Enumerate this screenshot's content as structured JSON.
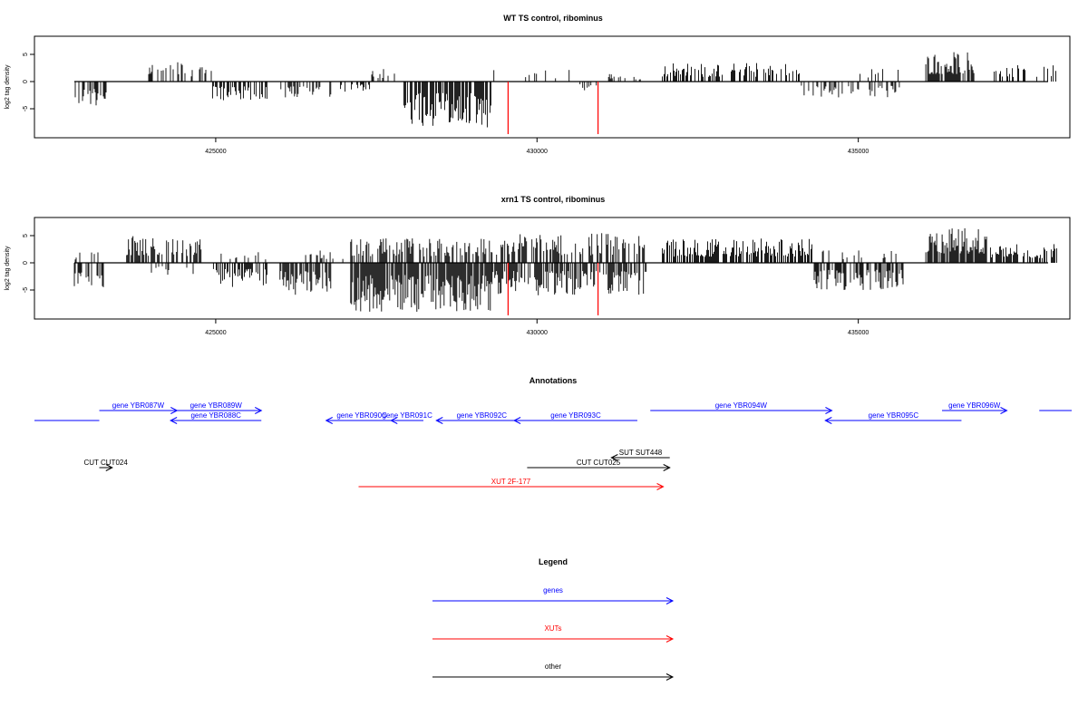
{
  "colors": {
    "gene": "#0000ff",
    "xut": "#ff0000",
    "other": "#000000",
    "marker": "#ff0000",
    "bars": "#000000"
  },
  "chart_data": [
    {
      "type": "bar",
      "title": "WT TS control, ribominus",
      "ylabel": "log2 tag density",
      "xlim": [
        422200,
        438100
      ],
      "ylim": [
        -9,
        7
      ],
      "x_ticks": [
        425000,
        430000,
        435000
      ],
      "x_tick_labels": [
        "425000",
        "430000",
        "435000"
      ],
      "y_ticks": [
        -5,
        0,
        5
      ],
      "y_tick_labels": [
        "-5",
        "0",
        "5"
      ],
      "red_markers": [
        429550,
        430950
      ],
      "segments": [
        {
          "x0": 422800,
          "x1": 423300,
          "sign": -1,
          "max": 4.5,
          "density": 0.55
        },
        {
          "x0": 423900,
          "x1": 424950,
          "sign": 1,
          "max": 3.8,
          "density": 0.35
        },
        {
          "x0": 424950,
          "x1": 425800,
          "sign": -1,
          "max": 3.5,
          "density": 0.55
        },
        {
          "x0": 426000,
          "x1": 426800,
          "sign": -1,
          "max": 3.5,
          "density": 0.55
        },
        {
          "x0": 426900,
          "x1": 427400,
          "sign": -1,
          "max": 2.0,
          "density": 0.3
        },
        {
          "x0": 427400,
          "x1": 427800,
          "sign": 1,
          "max": 2.5,
          "density": 0.3
        },
        {
          "x0": 427900,
          "x1": 429300,
          "sign": -1,
          "max": 8.5,
          "density": 0.75
        },
        {
          "x0": 429300,
          "x1": 430500,
          "sign": 1,
          "max": 2.2,
          "density": 0.12
        },
        {
          "x0": 430500,
          "x1": 431000,
          "sign": -1,
          "max": 2.0,
          "density": 0.18
        },
        {
          "x0": 431000,
          "x1": 431700,
          "sign": 1,
          "max": 1.5,
          "density": 0.12
        },
        {
          "x0": 431950,
          "x1": 434100,
          "sign": 1,
          "max": 3.5,
          "density": 0.45
        },
        {
          "x0": 434100,
          "x1": 435700,
          "sign": -1,
          "max": 3.0,
          "density": 0.3
        },
        {
          "x0": 435000,
          "x1": 435700,
          "sign": 1,
          "max": 2.5,
          "density": 0.15
        },
        {
          "x0": 436050,
          "x1": 436800,
          "sign": 1,
          "max": 5.5,
          "density": 0.85
        },
        {
          "x0": 437100,
          "x1": 438100,
          "sign": 1,
          "max": 3.0,
          "density": 0.35
        }
      ]
    },
    {
      "type": "bar",
      "title": "xrn1 TS control, ribominus",
      "ylabel": "log2 tag density",
      "xlim": [
        422200,
        438100
      ],
      "ylim": [
        -9,
        7
      ],
      "x_ticks": [
        425000,
        430000,
        435000
      ],
      "x_tick_labels": [
        "425000",
        "430000",
        "435000"
      ],
      "y_ticks": [
        -5,
        0,
        5
      ],
      "y_tick_labels": [
        "-5",
        "0",
        "5"
      ],
      "red_markers": [
        429550,
        430950
      ],
      "segments": [
        {
          "x0": 422800,
          "x1": 423300,
          "sign": -1,
          "max": 5.0,
          "density": 0.6
        },
        {
          "x0": 422800,
          "x1": 423300,
          "sign": 1,
          "max": 2.5,
          "density": 0.2
        },
        {
          "x0": 423600,
          "x1": 424800,
          "sign": 1,
          "max": 5.0,
          "density": 0.6
        },
        {
          "x0": 424000,
          "x1": 424800,
          "sign": -1,
          "max": 2.5,
          "density": 0.15
        },
        {
          "x0": 424950,
          "x1": 425800,
          "sign": -1,
          "max": 4.5,
          "density": 0.6
        },
        {
          "x0": 425000,
          "x1": 425800,
          "sign": 1,
          "max": 2.5,
          "density": 0.25
        },
        {
          "x0": 426000,
          "x1": 426800,
          "sign": -1,
          "max": 6.0,
          "density": 0.7
        },
        {
          "x0": 426300,
          "x1": 427000,
          "sign": 1,
          "max": 2.5,
          "density": 0.2
        },
        {
          "x0": 427100,
          "x1": 429300,
          "sign": -1,
          "max": 9.0,
          "density": 0.85
        },
        {
          "x0": 427100,
          "x1": 429300,
          "sign": 1,
          "max": 4.5,
          "density": 0.55
        },
        {
          "x0": 429300,
          "x1": 431700,
          "sign": 1,
          "max": 5.5,
          "density": 0.55
        },
        {
          "x0": 429300,
          "x1": 431700,
          "sign": -1,
          "max": 6.0,
          "density": 0.6
        },
        {
          "x0": 431950,
          "x1": 434300,
          "sign": 1,
          "max": 4.5,
          "density": 0.7
        },
        {
          "x0": 434300,
          "x1": 435700,
          "sign": -1,
          "max": 5.0,
          "density": 0.6
        },
        {
          "x0": 434400,
          "x1": 435700,
          "sign": 1,
          "max": 2.5,
          "density": 0.2
        },
        {
          "x0": 436050,
          "x1": 437000,
          "sign": 1,
          "max": 6.5,
          "density": 0.9
        },
        {
          "x0": 437000,
          "x1": 438100,
          "sign": 1,
          "max": 3.5,
          "density": 0.55
        }
      ]
    }
  ],
  "annotations": {
    "title": "Annotations",
    "features": [
      {
        "label": "",
        "x0": 422100,
        "x1": 423100,
        "kind": "gene",
        "dir": "none",
        "row": 2,
        "label_pos": "above"
      },
      {
        "label": "gene YBR087W",
        "x0": 423100,
        "x1": 424300,
        "kind": "gene",
        "dir": "fwd",
        "row": 1,
        "label_pos": "above"
      },
      {
        "label": "gene YBR088C",
        "x0": 424200,
        "x1": 425600,
        "kind": "gene",
        "dir": "rev",
        "row": 2,
        "label_pos": "above"
      },
      {
        "label": "gene YBR089W",
        "x0": 424200,
        "x1": 425600,
        "kind": "gene",
        "dir": "fwd",
        "row": 1,
        "label_pos": "above"
      },
      {
        "label": "gene YBR090C",
        "x0": 426600,
        "x1": 427700,
        "kind": "gene",
        "dir": "rev",
        "row": 2,
        "label_pos": "above"
      },
      {
        "label": "gene YBR091C",
        "x0": 427600,
        "x1": 428100,
        "kind": "gene",
        "dir": "rev",
        "row": 2,
        "label_pos": "above"
      },
      {
        "label": "gene YBR092C",
        "x0": 428300,
        "x1": 429700,
        "kind": "gene",
        "dir": "rev",
        "row": 2,
        "label_pos": "above"
      },
      {
        "label": "gene YBR093C",
        "x0": 429500,
        "x1": 431400,
        "kind": "gene",
        "dir": "rev",
        "row": 2,
        "label_pos": "above"
      },
      {
        "label": "gene YBR094W",
        "x0": 431600,
        "x1": 434400,
        "kind": "gene",
        "dir": "fwd",
        "row": 1,
        "label_pos": "above"
      },
      {
        "label": "gene YBR095C",
        "x0": 434300,
        "x1": 436400,
        "kind": "gene",
        "dir": "rev",
        "row": 2,
        "label_pos": "above"
      },
      {
        "label": "gene YBR096W",
        "x0": 436100,
        "x1": 437100,
        "kind": "gene",
        "dir": "fwd",
        "row": 1,
        "label_pos": "above"
      },
      {
        "label": "",
        "x0": 437600,
        "x1": 439000,
        "kind": "gene",
        "dir": "none",
        "row": 1,
        "label_pos": "above"
      },
      {
        "label": "SUT SUT448",
        "x0": 431000,
        "x1": 431900,
        "kind": "other",
        "dir": "rev",
        "row": 3,
        "label_pos": "above"
      },
      {
        "label": "CUT CUT025",
        "x0": 429700,
        "x1": 431900,
        "kind": "other",
        "dir": "fwd",
        "row": 4,
        "label_pos": "above"
      },
      {
        "label": "CUT CUT024",
        "x0": 423100,
        "x1": 423300,
        "kind": "other",
        "dir": "fwd",
        "row": 4,
        "label_pos": "above"
      },
      {
        "label": "XUT 2F-177",
        "x0": 427100,
        "x1": 431800,
        "kind": "xut",
        "dir": "fwd",
        "row": 5,
        "label_pos": "above"
      }
    ]
  },
  "legend": {
    "title": "Legend",
    "items": [
      {
        "label": "genes",
        "kind": "gene"
      },
      {
        "label": "XUTs",
        "kind": "xut"
      },
      {
        "label": "other",
        "kind": "other"
      }
    ]
  }
}
